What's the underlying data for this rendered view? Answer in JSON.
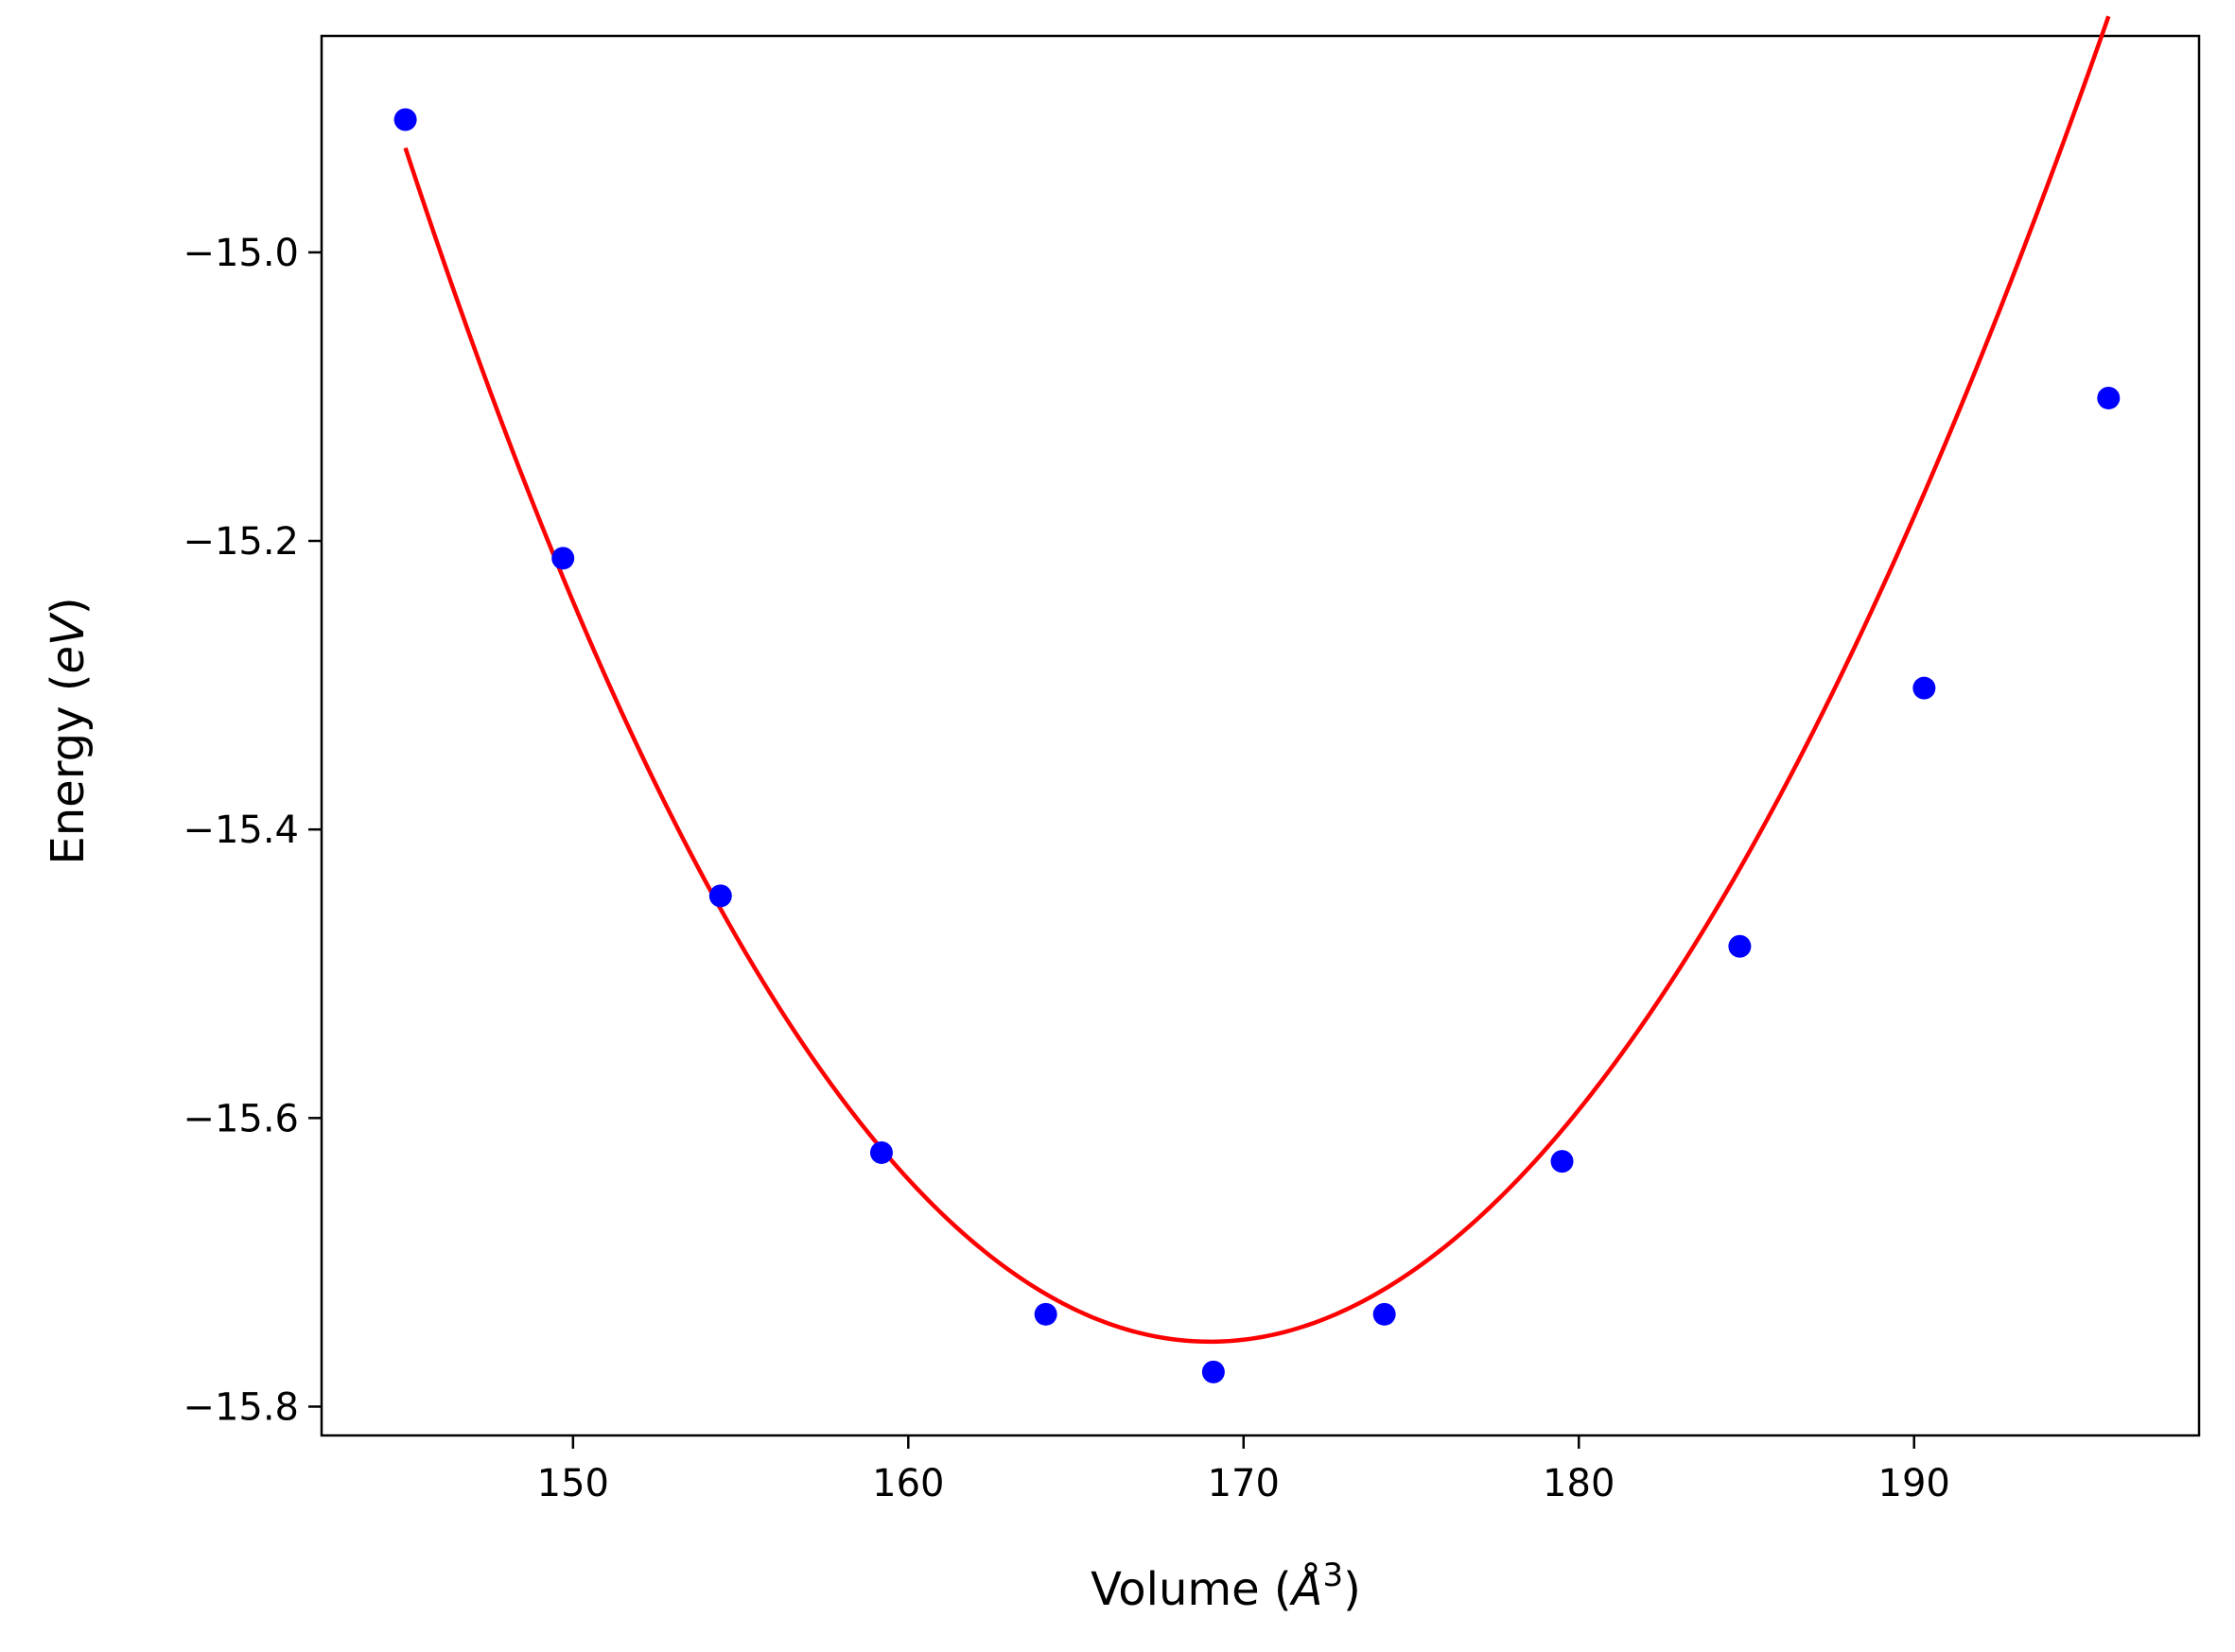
{
  "chart_data": {
    "type": "scatter",
    "title": "",
    "xlabel": {
      "text": "Volume (",
      "math": "Å",
      "sup": "3",
      "close": ")"
    },
    "ylabel": {
      "text": "Energy (",
      "math": "eV",
      "close": ")"
    },
    "xlim": [
      142.5,
      198.5
    ],
    "ylim": [
      -15.82,
      -14.85
    ],
    "xticks": [
      150,
      160,
      170,
      180,
      190
    ],
    "xtick_labels": [
      "150",
      "160",
      "170",
      "180",
      "190"
    ],
    "yticks": [
      -15.8,
      -15.6,
      -15.4,
      -15.2,
      -15.0
    ],
    "ytick_labels": [
      "−15.8",
      "−15.6",
      "−15.4",
      "−15.2",
      "−15.0"
    ],
    "grid": false,
    "legend": "none",
    "colors": {
      "points": "#0000ff",
      "fit": "#ff0000",
      "axes": "#000000"
    },
    "points": {
      "x": [
        145.0,
        149.7,
        154.4,
        159.2,
        164.1,
        169.1,
        174.2,
        179.5,
        184.8,
        190.3,
        195.8
      ],
      "y": [
        -14.908,
        -15.212,
        -15.446,
        -15.624,
        -15.736,
        -15.776,
        -15.736,
        -15.63,
        -15.481,
        -15.302,
        -15.101
      ]
    },
    "fit_curve": {
      "x_range": [
        145.0,
        195.8
      ],
      "vertex_x": 169.0,
      "vertex_y": -15.755,
      "a": 0.001362,
      "b": -3.1e-06
    }
  }
}
